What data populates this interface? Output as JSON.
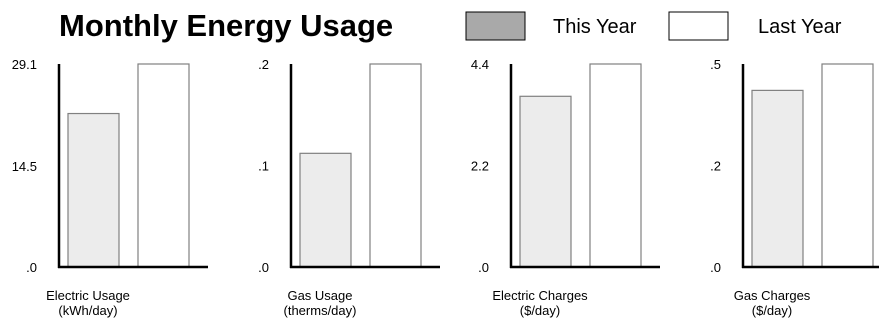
{
  "title": "Monthly Energy Usage",
  "legend": [
    {
      "label": "This Year",
      "color": "#a9a9a9"
    },
    {
      "label": "Last Year",
      "color": "#ffffff"
    }
  ],
  "colors": {
    "this_year_bar": "#ececec",
    "last_year_bar": "#ffffff",
    "bar_stroke": "#808080",
    "axis": "#000000"
  },
  "chart_data": [
    {
      "type": "bar",
      "xlabel": [
        "Electric Usage",
        "(kWh/day)"
      ],
      "ylim": [
        0,
        29.1
      ],
      "yticks": [
        0,
        14.5,
        29.1
      ],
      "ytick_labels": [
        ".0",
        "14.5",
        "29.1"
      ],
      "series": [
        {
          "name": "This Year",
          "values": [
            22
          ]
        },
        {
          "name": "Last Year",
          "values": [
            29.1
          ]
        }
      ]
    },
    {
      "type": "bar",
      "xlabel": [
        "Gas Usage",
        "(therms/day)"
      ],
      "ylim": [
        0,
        0.2
      ],
      "yticks": [
        0,
        0.1,
        0.2
      ],
      "ytick_labels": [
        ".0",
        ".1",
        ".2"
      ],
      "series": [
        {
          "name": "This Year",
          "values": [
            0.112
          ]
        },
        {
          "name": "Last Year",
          "values": [
            0.2
          ]
        }
      ]
    },
    {
      "type": "bar",
      "xlabel": [
        "Electric Charges",
        "($/day)"
      ],
      "ylim": [
        0,
        4.4
      ],
      "yticks": [
        0,
        2.2,
        4.4
      ],
      "ytick_labels": [
        ".0",
        "2.2",
        "4.4"
      ],
      "series": [
        {
          "name": "This Year",
          "values": [
            3.7
          ]
        },
        {
          "name": "Last Year",
          "values": [
            4.4
          ]
        }
      ]
    },
    {
      "type": "bar",
      "xlabel": [
        "Gas Charges",
        "($/day)"
      ],
      "ylim": [
        0,
        0.5
      ],
      "yticks": [
        0,
        0.25,
        0.5
      ],
      "ytick_labels": [
        ".0",
        ".2",
        ".5"
      ],
      "series": [
        {
          "name": "This Year",
          "values": [
            0.435
          ]
        },
        {
          "name": "Last Year",
          "values": [
            0.5
          ]
        }
      ]
    }
  ]
}
